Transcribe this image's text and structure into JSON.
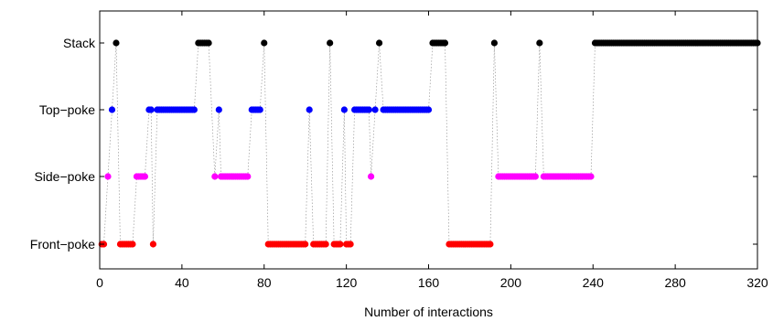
{
  "chart_data": {
    "type": "scatter",
    "xlabel": "Number of interactions",
    "ylabel": "",
    "title": "",
    "xlim": [
      0,
      320
    ],
    "xticks": [
      0,
      40,
      80,
      120,
      160,
      200,
      240,
      280,
      320
    ],
    "categories": [
      "Front-poke",
      "Side-poke",
      "Top-poke",
      "Stack"
    ],
    "category_labels": [
      "Front−poke",
      "Side−poke",
      "Top−poke",
      "Stack"
    ],
    "grid": false,
    "legend": "none",
    "connector_style": "dotted gray vertical lines join consecutive interactions",
    "colors": {
      "Stack": "#000000",
      "Top-poke": "#0000ff",
      "Side-poke": "#ff00ff",
      "Front-poke": "#ff0000"
    },
    "sequence": [
      {
        "x": 1,
        "action": "Front-poke"
      },
      {
        "x": 2,
        "action": "Front-poke"
      },
      {
        "x": 4,
        "action": "Side-poke"
      },
      {
        "x": 6,
        "action": "Top-poke"
      },
      {
        "x": 8,
        "action": "Stack"
      },
      {
        "x": 10,
        "action": "Front-poke"
      },
      {
        "x": 11,
        "action": "Front-poke"
      },
      {
        "x": 12,
        "action": "Front-poke"
      },
      {
        "x": 13,
        "action": "Front-poke"
      },
      {
        "x": 14,
        "action": "Front-poke"
      },
      {
        "x": 15,
        "action": "Front-poke"
      },
      {
        "x": 16,
        "action": "Front-poke"
      },
      {
        "x": 18,
        "action": "Side-poke"
      },
      {
        "x": 19,
        "action": "Side-poke"
      },
      {
        "x": 20,
        "action": "Side-poke"
      },
      {
        "x": 21,
        "action": "Side-poke"
      },
      {
        "x": 22,
        "action": "Side-poke"
      },
      {
        "x": 24,
        "action": "Top-poke"
      },
      {
        "x": 25,
        "action": "Top-poke"
      },
      {
        "x": 26,
        "action": "Front-poke"
      },
      {
        "x": 28,
        "action": "Top-poke"
      },
      {
        "x": 29,
        "action": "Top-poke"
      },
      {
        "x": 30,
        "action": "Top-poke"
      },
      {
        "x": 31,
        "action": "Top-poke"
      },
      {
        "x": 32,
        "action": "Top-poke"
      },
      {
        "x": 33,
        "action": "Top-poke"
      },
      {
        "x": 34,
        "action": "Top-poke"
      },
      {
        "x": 35,
        "action": "Top-poke"
      },
      {
        "x": 36,
        "action": "Top-poke"
      },
      {
        "x": 37,
        "action": "Top-poke"
      },
      {
        "x": 38,
        "action": "Top-poke"
      },
      {
        "x": 39,
        "action": "Top-poke"
      },
      {
        "x": 40,
        "action": "Top-poke"
      },
      {
        "x": 41,
        "action": "Top-poke"
      },
      {
        "x": 42,
        "action": "Top-poke"
      },
      {
        "x": 43,
        "action": "Top-poke"
      },
      {
        "x": 44,
        "action": "Top-poke"
      },
      {
        "x": 45,
        "action": "Top-poke"
      },
      {
        "x": 46,
        "action": "Top-poke"
      },
      {
        "x": 48,
        "action": "Stack"
      },
      {
        "x": 49,
        "action": "Stack"
      },
      {
        "x": 50,
        "action": "Stack"
      },
      {
        "x": 51,
        "action": "Stack"
      },
      {
        "x": 52,
        "action": "Stack"
      },
      {
        "x": 53,
        "action": "Stack"
      },
      {
        "x": 56,
        "action": "Side-poke"
      },
      {
        "x": 58,
        "action": "Top-poke"
      },
      {
        "x": 59,
        "action": "Side-poke"
      },
      {
        "x": 60,
        "action": "Side-poke"
      },
      {
        "x": 61,
        "action": "Side-poke"
      },
      {
        "x": 62,
        "action": "Side-poke"
      },
      {
        "x": 63,
        "action": "Side-poke"
      },
      {
        "x": 64,
        "action": "Side-poke"
      },
      {
        "x": 65,
        "action": "Side-poke"
      },
      {
        "x": 66,
        "action": "Side-poke"
      },
      {
        "x": 67,
        "action": "Side-poke"
      },
      {
        "x": 68,
        "action": "Side-poke"
      },
      {
        "x": 69,
        "action": "Side-poke"
      },
      {
        "x": 70,
        "action": "Side-poke"
      },
      {
        "x": 71,
        "action": "Side-poke"
      },
      {
        "x": 72,
        "action": "Side-poke"
      },
      {
        "x": 74,
        "action": "Top-poke"
      },
      {
        "x": 75,
        "action": "Top-poke"
      },
      {
        "x": 76,
        "action": "Top-poke"
      },
      {
        "x": 77,
        "action": "Top-poke"
      },
      {
        "x": 78,
        "action": "Top-poke"
      },
      {
        "x": 80,
        "action": "Stack"
      },
      {
        "x": 82,
        "action": "Front-poke"
      },
      {
        "x": 83,
        "action": "Front-poke"
      },
      {
        "x": 84,
        "action": "Front-poke"
      },
      {
        "x": 85,
        "action": "Front-poke"
      },
      {
        "x": 86,
        "action": "Front-poke"
      },
      {
        "x": 87,
        "action": "Front-poke"
      },
      {
        "x": 88,
        "action": "Front-poke"
      },
      {
        "x": 89,
        "action": "Front-poke"
      },
      {
        "x": 90,
        "action": "Front-poke"
      },
      {
        "x": 91,
        "action": "Front-poke"
      },
      {
        "x": 92,
        "action": "Front-poke"
      },
      {
        "x": 93,
        "action": "Front-poke"
      },
      {
        "x": 94,
        "action": "Front-poke"
      },
      {
        "x": 95,
        "action": "Front-poke"
      },
      {
        "x": 96,
        "action": "Front-poke"
      },
      {
        "x": 97,
        "action": "Front-poke"
      },
      {
        "x": 98,
        "action": "Front-poke"
      },
      {
        "x": 99,
        "action": "Front-poke"
      },
      {
        "x": 100,
        "action": "Front-poke"
      },
      {
        "x": 102,
        "action": "Top-poke"
      },
      {
        "x": 104,
        "action": "Front-poke"
      },
      {
        "x": 105,
        "action": "Front-poke"
      },
      {
        "x": 106,
        "action": "Front-poke"
      },
      {
        "x": 107,
        "action": "Front-poke"
      },
      {
        "x": 108,
        "action": "Front-poke"
      },
      {
        "x": 109,
        "action": "Front-poke"
      },
      {
        "x": 110,
        "action": "Front-poke"
      },
      {
        "x": 112,
        "action": "Stack"
      },
      {
        "x": 114,
        "action": "Front-poke"
      },
      {
        "x": 115,
        "action": "Front-poke"
      },
      {
        "x": 116,
        "action": "Front-poke"
      },
      {
        "x": 117,
        "action": "Front-poke"
      },
      {
        "x": 119,
        "action": "Top-poke"
      },
      {
        "x": 120,
        "action": "Front-poke"
      },
      {
        "x": 121,
        "action": "Front-poke"
      },
      {
        "x": 122,
        "action": "Front-poke"
      },
      {
        "x": 124,
        "action": "Top-poke"
      },
      {
        "x": 125,
        "action": "Top-poke"
      },
      {
        "x": 126,
        "action": "Top-poke"
      },
      {
        "x": 127,
        "action": "Top-poke"
      },
      {
        "x": 128,
        "action": "Top-poke"
      },
      {
        "x": 129,
        "action": "Top-poke"
      },
      {
        "x": 130,
        "action": "Top-poke"
      },
      {
        "x": 131,
        "action": "Top-poke"
      },
      {
        "x": 132,
        "action": "Side-poke"
      },
      {
        "x": 134,
        "action": "Top-poke"
      },
      {
        "x": 136,
        "action": "Stack"
      },
      {
        "x": 138,
        "action": "Top-poke"
      },
      {
        "x": 139,
        "action": "Top-poke"
      },
      {
        "x": 140,
        "action": "Top-poke"
      },
      {
        "x": 141,
        "action": "Top-poke"
      },
      {
        "x": 142,
        "action": "Top-poke"
      },
      {
        "x": 143,
        "action": "Top-poke"
      },
      {
        "x": 144,
        "action": "Top-poke"
      },
      {
        "x": 145,
        "action": "Top-poke"
      },
      {
        "x": 146,
        "action": "Top-poke"
      },
      {
        "x": 147,
        "action": "Top-poke"
      },
      {
        "x": 148,
        "action": "Top-poke"
      },
      {
        "x": 149,
        "action": "Top-poke"
      },
      {
        "x": 150,
        "action": "Top-poke"
      },
      {
        "x": 151,
        "action": "Top-poke"
      },
      {
        "x": 152,
        "action": "Top-poke"
      },
      {
        "x": 153,
        "action": "Top-poke"
      },
      {
        "x": 154,
        "action": "Top-poke"
      },
      {
        "x": 155,
        "action": "Top-poke"
      },
      {
        "x": 156,
        "action": "Top-poke"
      },
      {
        "x": 157,
        "action": "Top-poke"
      },
      {
        "x": 158,
        "action": "Top-poke"
      },
      {
        "x": 159,
        "action": "Top-poke"
      },
      {
        "x": 160,
        "action": "Top-poke"
      },
      {
        "x": 162,
        "action": "Stack"
      },
      {
        "x": 163,
        "action": "Stack"
      },
      {
        "x": 164,
        "action": "Stack"
      },
      {
        "x": 165,
        "action": "Stack"
      },
      {
        "x": 166,
        "action": "Stack"
      },
      {
        "x": 167,
        "action": "Stack"
      },
      {
        "x": 168,
        "action": "Stack"
      },
      {
        "x": 170,
        "action": "Front-poke"
      },
      {
        "x": 171,
        "action": "Front-poke"
      },
      {
        "x": 172,
        "action": "Front-poke"
      },
      {
        "x": 173,
        "action": "Front-poke"
      },
      {
        "x": 174,
        "action": "Front-poke"
      },
      {
        "x": 175,
        "action": "Front-poke"
      },
      {
        "x": 176,
        "action": "Front-poke"
      },
      {
        "x": 177,
        "action": "Front-poke"
      },
      {
        "x": 178,
        "action": "Front-poke"
      },
      {
        "x": 179,
        "action": "Front-poke"
      },
      {
        "x": 180,
        "action": "Front-poke"
      },
      {
        "x": 181,
        "action": "Front-poke"
      },
      {
        "x": 182,
        "action": "Front-poke"
      },
      {
        "x": 183,
        "action": "Front-poke"
      },
      {
        "x": 184,
        "action": "Front-poke"
      },
      {
        "x": 185,
        "action": "Front-poke"
      },
      {
        "x": 186,
        "action": "Front-poke"
      },
      {
        "x": 187,
        "action": "Front-poke"
      },
      {
        "x": 188,
        "action": "Front-poke"
      },
      {
        "x": 189,
        "action": "Front-poke"
      },
      {
        "x": 190,
        "action": "Front-poke"
      },
      {
        "x": 192,
        "action": "Stack"
      },
      {
        "x": 194,
        "action": "Side-poke"
      },
      {
        "x": 195,
        "action": "Side-poke"
      },
      {
        "x": 196,
        "action": "Side-poke"
      },
      {
        "x": 197,
        "action": "Side-poke"
      },
      {
        "x": 198,
        "action": "Side-poke"
      },
      {
        "x": 199,
        "action": "Side-poke"
      },
      {
        "x": 200,
        "action": "Side-poke"
      },
      {
        "x": 201,
        "action": "Side-poke"
      },
      {
        "x": 202,
        "action": "Side-poke"
      },
      {
        "x": 203,
        "action": "Side-poke"
      },
      {
        "x": 204,
        "action": "Side-poke"
      },
      {
        "x": 205,
        "action": "Side-poke"
      },
      {
        "x": 206,
        "action": "Side-poke"
      },
      {
        "x": 207,
        "action": "Side-poke"
      },
      {
        "x": 208,
        "action": "Side-poke"
      },
      {
        "x": 209,
        "action": "Side-poke"
      },
      {
        "x": 210,
        "action": "Side-poke"
      },
      {
        "x": 211,
        "action": "Side-poke"
      },
      {
        "x": 212,
        "action": "Side-poke"
      },
      {
        "x": 214,
        "action": "Stack"
      },
      {
        "x": 216,
        "action": "Side-poke"
      },
      {
        "x": 217,
        "action": "Side-poke"
      },
      {
        "x": 218,
        "action": "Side-poke"
      },
      {
        "x": 219,
        "action": "Side-poke"
      },
      {
        "x": 220,
        "action": "Side-poke"
      },
      {
        "x": 221,
        "action": "Side-poke"
      },
      {
        "x": 222,
        "action": "Side-poke"
      },
      {
        "x": 223,
        "action": "Side-poke"
      },
      {
        "x": 224,
        "action": "Side-poke"
      },
      {
        "x": 225,
        "action": "Side-poke"
      },
      {
        "x": 226,
        "action": "Side-poke"
      },
      {
        "x": 227,
        "action": "Side-poke"
      },
      {
        "x": 228,
        "action": "Side-poke"
      },
      {
        "x": 229,
        "action": "Side-poke"
      },
      {
        "x": 230,
        "action": "Side-poke"
      },
      {
        "x": 231,
        "action": "Side-poke"
      },
      {
        "x": 232,
        "action": "Side-poke"
      },
      {
        "x": 233,
        "action": "Side-poke"
      },
      {
        "x": 234,
        "action": "Side-poke"
      },
      {
        "x": 235,
        "action": "Side-poke"
      },
      {
        "x": 236,
        "action": "Side-poke"
      },
      {
        "x": 237,
        "action": "Side-poke"
      },
      {
        "x": 238,
        "action": "Side-poke"
      },
      {
        "x": 239,
        "action": "Side-poke"
      },
      {
        "x": 241,
        "action": "Stack"
      },
      {
        "x": 242,
        "action": "Stack"
      },
      {
        "x": 243,
        "action": "Stack"
      },
      {
        "x": 244,
        "action": "Stack"
      },
      {
        "x": 245,
        "action": "Stack"
      },
      {
        "x": 246,
        "action": "Stack"
      },
      {
        "x": 247,
        "action": "Stack"
      },
      {
        "x": 248,
        "action": "Stack"
      },
      {
        "x": 249,
        "action": "Stack"
      },
      {
        "x": 250,
        "action": "Stack"
      },
      {
        "x": 251,
        "action": "Stack"
      },
      {
        "x": 252,
        "action": "Stack"
      },
      {
        "x": 253,
        "action": "Stack"
      },
      {
        "x": 254,
        "action": "Stack"
      },
      {
        "x": 255,
        "action": "Stack"
      },
      {
        "x": 256,
        "action": "Stack"
      },
      {
        "x": 257,
        "action": "Stack"
      },
      {
        "x": 258,
        "action": "Stack"
      },
      {
        "x": 259,
        "action": "Stack"
      },
      {
        "x": 260,
        "action": "Stack"
      },
      {
        "x": 261,
        "action": "Stack"
      },
      {
        "x": 262,
        "action": "Stack"
      },
      {
        "x": 263,
        "action": "Stack"
      },
      {
        "x": 264,
        "action": "Stack"
      },
      {
        "x": 265,
        "action": "Stack"
      },
      {
        "x": 266,
        "action": "Stack"
      },
      {
        "x": 267,
        "action": "Stack"
      },
      {
        "x": 268,
        "action": "Stack"
      },
      {
        "x": 269,
        "action": "Stack"
      },
      {
        "x": 270,
        "action": "Stack"
      },
      {
        "x": 271,
        "action": "Stack"
      },
      {
        "x": 272,
        "action": "Stack"
      },
      {
        "x": 273,
        "action": "Stack"
      },
      {
        "x": 274,
        "action": "Stack"
      },
      {
        "x": 275,
        "action": "Stack"
      },
      {
        "x": 276,
        "action": "Stack"
      },
      {
        "x": 277,
        "action": "Stack"
      },
      {
        "x": 278,
        "action": "Stack"
      },
      {
        "x": 279,
        "action": "Stack"
      },
      {
        "x": 280,
        "action": "Stack"
      },
      {
        "x": 281,
        "action": "Stack"
      },
      {
        "x": 282,
        "action": "Stack"
      },
      {
        "x": 283,
        "action": "Stack"
      },
      {
        "x": 284,
        "action": "Stack"
      },
      {
        "x": 285,
        "action": "Stack"
      },
      {
        "x": 286,
        "action": "Stack"
      },
      {
        "x": 287,
        "action": "Stack"
      },
      {
        "x": 288,
        "action": "Stack"
      },
      {
        "x": 289,
        "action": "Stack"
      },
      {
        "x": 290,
        "action": "Stack"
      },
      {
        "x": 291,
        "action": "Stack"
      },
      {
        "x": 292,
        "action": "Stack"
      },
      {
        "x": 293,
        "action": "Stack"
      },
      {
        "x": 294,
        "action": "Stack"
      },
      {
        "x": 295,
        "action": "Stack"
      },
      {
        "x": 296,
        "action": "Stack"
      },
      {
        "x": 297,
        "action": "Stack"
      },
      {
        "x": 298,
        "action": "Stack"
      },
      {
        "x": 299,
        "action": "Stack"
      },
      {
        "x": 300,
        "action": "Stack"
      },
      {
        "x": 301,
        "action": "Stack"
      },
      {
        "x": 302,
        "action": "Stack"
      },
      {
        "x": 303,
        "action": "Stack"
      },
      {
        "x": 304,
        "action": "Stack"
      },
      {
        "x": 305,
        "action": "Stack"
      },
      {
        "x": 306,
        "action": "Stack"
      },
      {
        "x": 307,
        "action": "Stack"
      },
      {
        "x": 308,
        "action": "Stack"
      },
      {
        "x": 309,
        "action": "Stack"
      },
      {
        "x": 310,
        "action": "Stack"
      },
      {
        "x": 311,
        "action": "Stack"
      },
      {
        "x": 312,
        "action": "Stack"
      },
      {
        "x": 313,
        "action": "Stack"
      },
      {
        "x": 314,
        "action": "Stack"
      },
      {
        "x": 315,
        "action": "Stack"
      },
      {
        "x": 316,
        "action": "Stack"
      },
      {
        "x": 317,
        "action": "Stack"
      },
      {
        "x": 318,
        "action": "Stack"
      },
      {
        "x": 319,
        "action": "Stack"
      },
      {
        "x": 320,
        "action": "Stack"
      }
    ]
  }
}
